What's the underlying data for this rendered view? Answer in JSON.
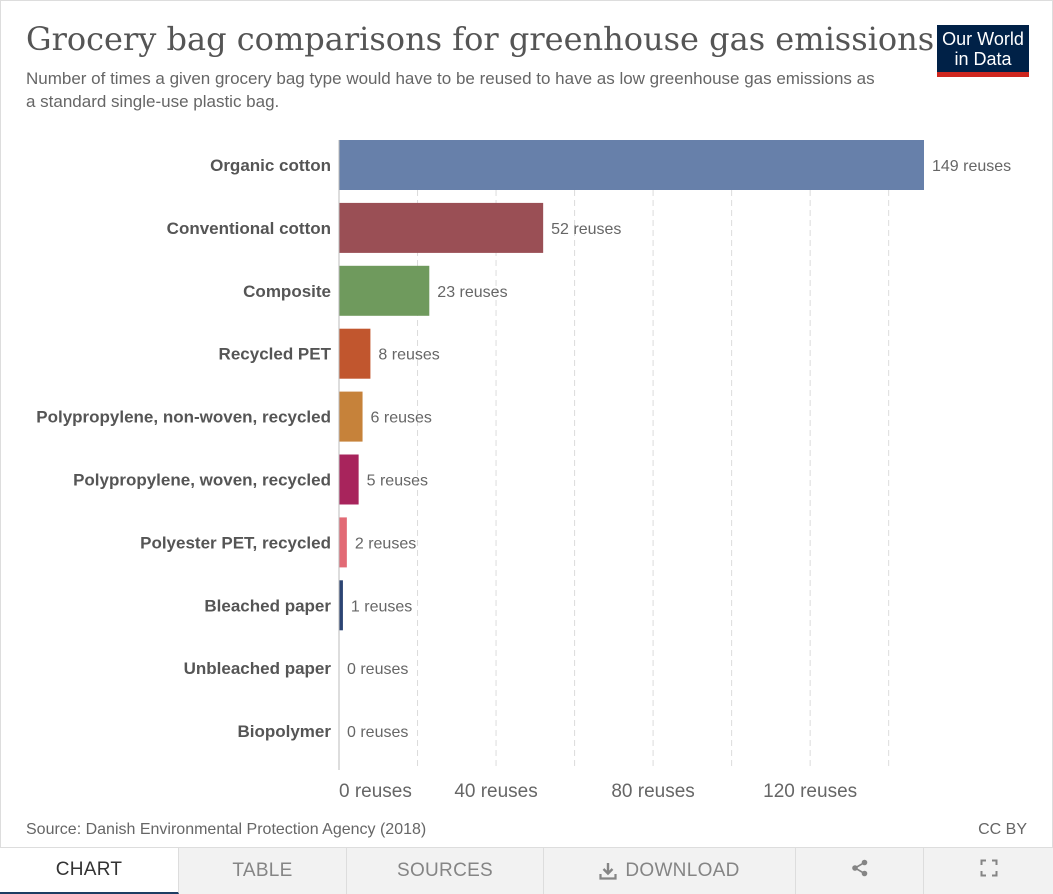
{
  "header": {
    "title": "Grocery bag comparisons for greenhouse gas emissions",
    "subtitle": "Number of times a given grocery bag type would have to be reused to have as low greenhouse gas emissions as a standard single-use plastic bag.",
    "logo_line1": "Our World",
    "logo_line2": "in Data"
  },
  "chart_data": {
    "type": "bar",
    "orientation": "horizontal",
    "categories": [
      "Organic cotton",
      "Conventional cotton",
      "Composite",
      "Recycled PET",
      "Polypropylene, non-woven, recycled",
      "Polypropylene, woven, recycled",
      "Polyester PET, recycled",
      "Bleached paper",
      "Unbleached paper",
      "Biopolymer"
    ],
    "values": [
      149,
      52,
      23,
      8,
      6,
      5,
      2,
      1,
      0,
      0
    ],
    "value_labels": [
      "149 reuses",
      "52 reuses",
      "23 reuses",
      "8 reuses",
      "6 reuses",
      "5 reuses",
      "2 reuses",
      "1 reuses",
      "0 reuses",
      "0 reuses"
    ],
    "colors": [
      "#6780aa",
      "#9a4f55",
      "#6f9a5d",
      "#c1562e",
      "#c6823a",
      "#a8245c",
      "#e26a75",
      "#2c4473",
      "#999999",
      "#999999"
    ],
    "xlim": [
      0,
      149
    ],
    "xticks": [
      0,
      40,
      80,
      120
    ],
    "xtick_labels": [
      "0 reuses",
      "40 reuses",
      "80 reuses",
      "120 reuses"
    ],
    "grid": "vertical-dashed",
    "legend": "none"
  },
  "footer": {
    "source": "Source: Danish Environmental Protection Agency (2018)",
    "license": "CC BY"
  },
  "tabs": [
    {
      "label": "CHART",
      "icon": "",
      "active": true
    },
    {
      "label": "TABLE",
      "icon": "",
      "active": false
    },
    {
      "label": "SOURCES",
      "icon": "",
      "active": false
    },
    {
      "label": "DOWNLOAD",
      "icon": "download-icon",
      "active": false
    },
    {
      "label": "",
      "icon": "share-icon",
      "active": false
    },
    {
      "label": "",
      "icon": "fullscreen-icon",
      "active": false
    }
  ]
}
